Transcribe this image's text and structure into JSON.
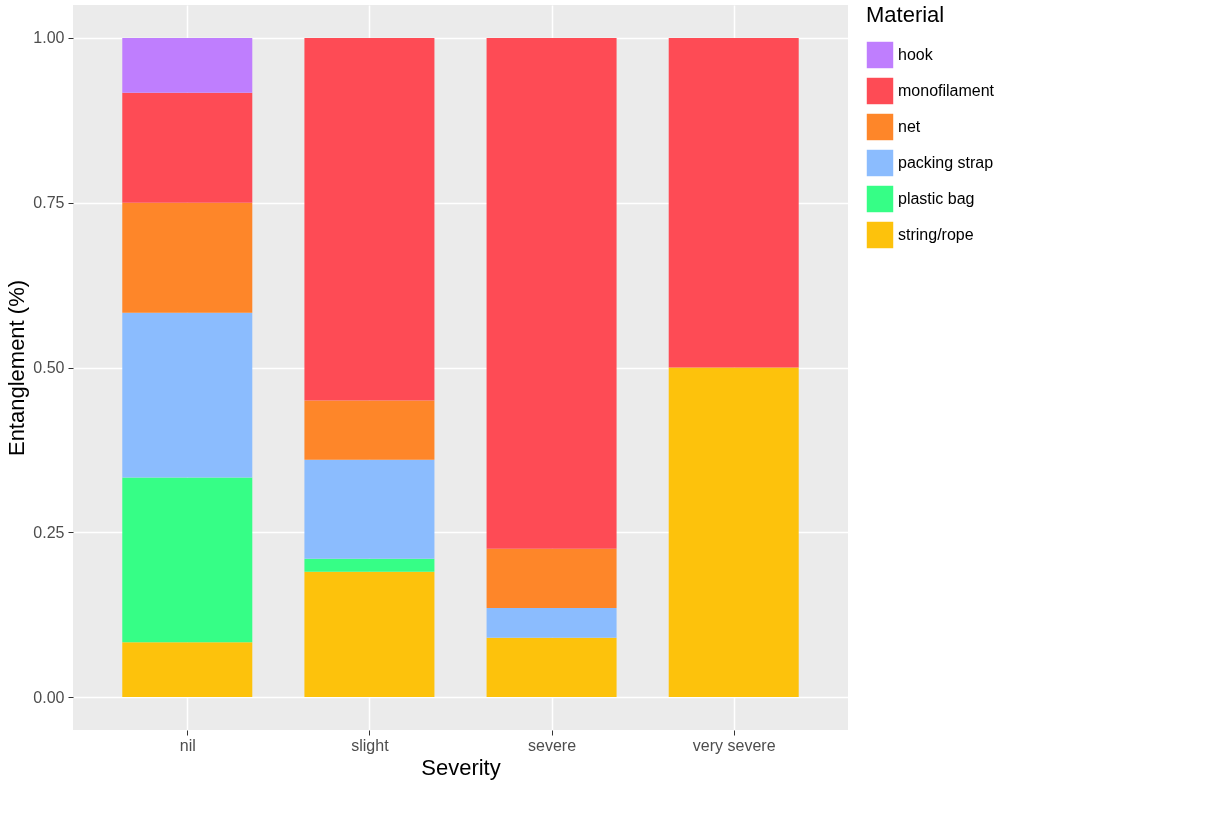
{
  "chart_data": {
    "type": "bar",
    "stacked": true,
    "xlabel": "Severity",
    "ylabel": "Entanglement (%)",
    "legend_title": "Material",
    "categories": [
      "nil",
      "slight",
      "severe",
      "very severe"
    ],
    "series": [
      {
        "name": "string/rope",
        "color": "#fdc20c",
        "values": [
          0.083,
          0.19,
          0.09,
          0.5
        ]
      },
      {
        "name": "plastic bag",
        "color": "#36fe86",
        "values": [
          0.25,
          0.02,
          null,
          null
        ]
      },
      {
        "name": "packing strap",
        "color": "#8bbcfe",
        "values": [
          0.25,
          0.15,
          0.045,
          null
        ]
      },
      {
        "name": "net",
        "color": "#fe8629",
        "values": [
          0.167,
          0.09,
          0.09,
          null
        ]
      },
      {
        "name": "monofilament",
        "color": "#fe4b55",
        "values": [
          0.167,
          0.55,
          0.775,
          0.5
        ]
      },
      {
        "name": "hook",
        "color": "#bf7efe",
        "values": [
          0.083,
          null,
          null,
          null
        ]
      }
    ],
    "ylim": [
      -0.05,
      1.05
    ],
    "yticks": [
      {
        "value": 0,
        "label": "0.00"
      },
      {
        "value": 0.25,
        "label": "0.25"
      },
      {
        "value": 0.5,
        "label": "0.50"
      },
      {
        "value": 0.75,
        "label": "0.75"
      },
      {
        "value": 1,
        "label": "1.00"
      }
    ],
    "grid": true,
    "legend": "right"
  }
}
